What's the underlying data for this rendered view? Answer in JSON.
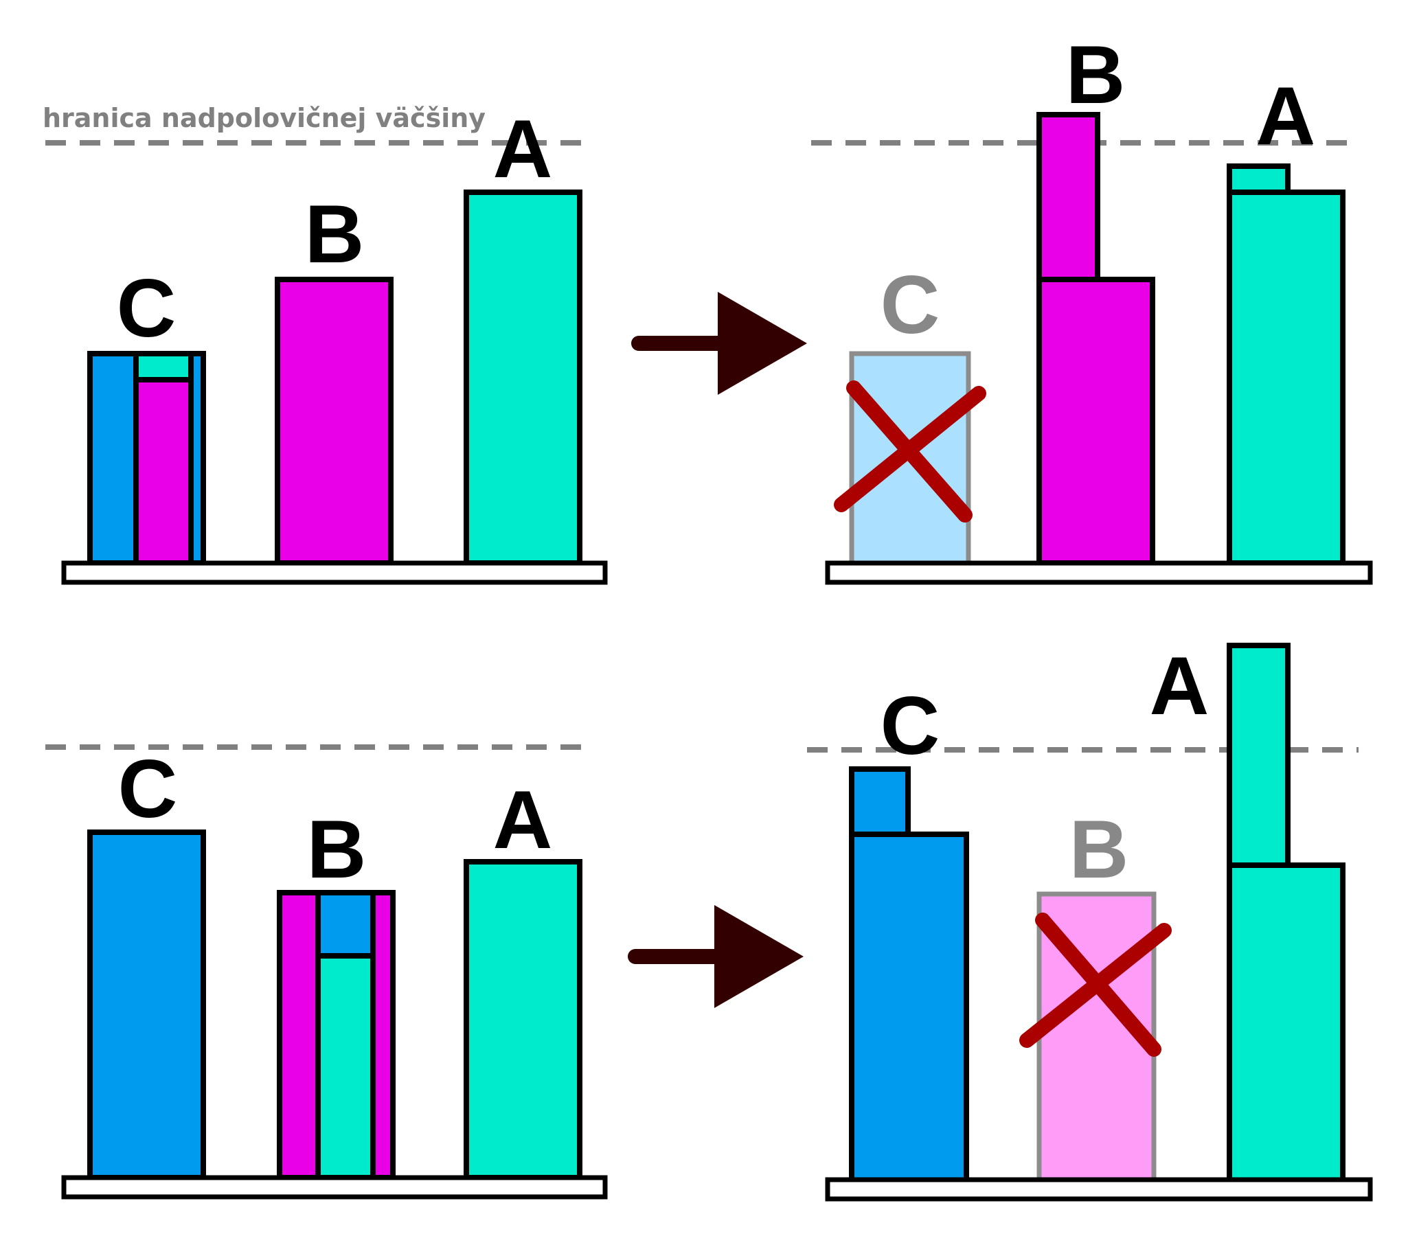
{
  "threshold_label": "hranica nadpolovičnej väčšiny",
  "colors": {
    "A": "#00ebcb",
    "B": "#ea00e6",
    "C": "#009bef",
    "C_eliminated": "#abe1ff",
    "B_eliminated": "#ff9cf7",
    "cross": "#aa0000",
    "arrow": "#330000",
    "threshold": "#808080"
  },
  "scenarios": [
    {
      "before": {
        "labels": {
          "C": "C",
          "B": "B",
          "A": "A"
        }
      },
      "after": {
        "labels": {
          "C": "C",
          "B": "B",
          "A": "A"
        },
        "eliminated": "C"
      }
    },
    {
      "before": {
        "labels": {
          "C": "C",
          "B": "B",
          "A": "A"
        }
      },
      "after": {
        "labels": {
          "C": "C",
          "B": "B",
          "A": "A"
        },
        "eliminated": "B"
      }
    }
  ]
}
